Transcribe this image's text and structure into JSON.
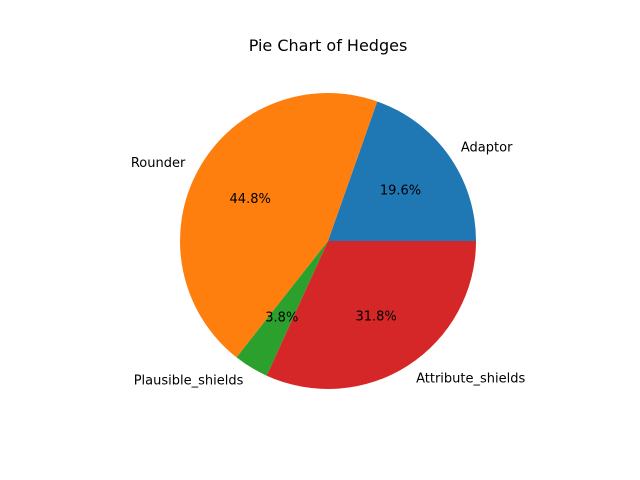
{
  "chart_data": {
    "type": "pie",
    "title": "Pie Chart of Hedges",
    "categories": [
      "Adaptor",
      "Rounder",
      "Plausible_shields",
      "Attribute_shields"
    ],
    "values": [
      19.6,
      44.8,
      3.8,
      31.8
    ],
    "value_labels": [
      "19.6%",
      "44.8%",
      "3.8%",
      "31.8%"
    ],
    "colors": [
      "#1f77b4",
      "#ff7f0e",
      "#2ca02c",
      "#d62728"
    ],
    "start_angle_deg": 0,
    "direction": "counterclockwise"
  }
}
